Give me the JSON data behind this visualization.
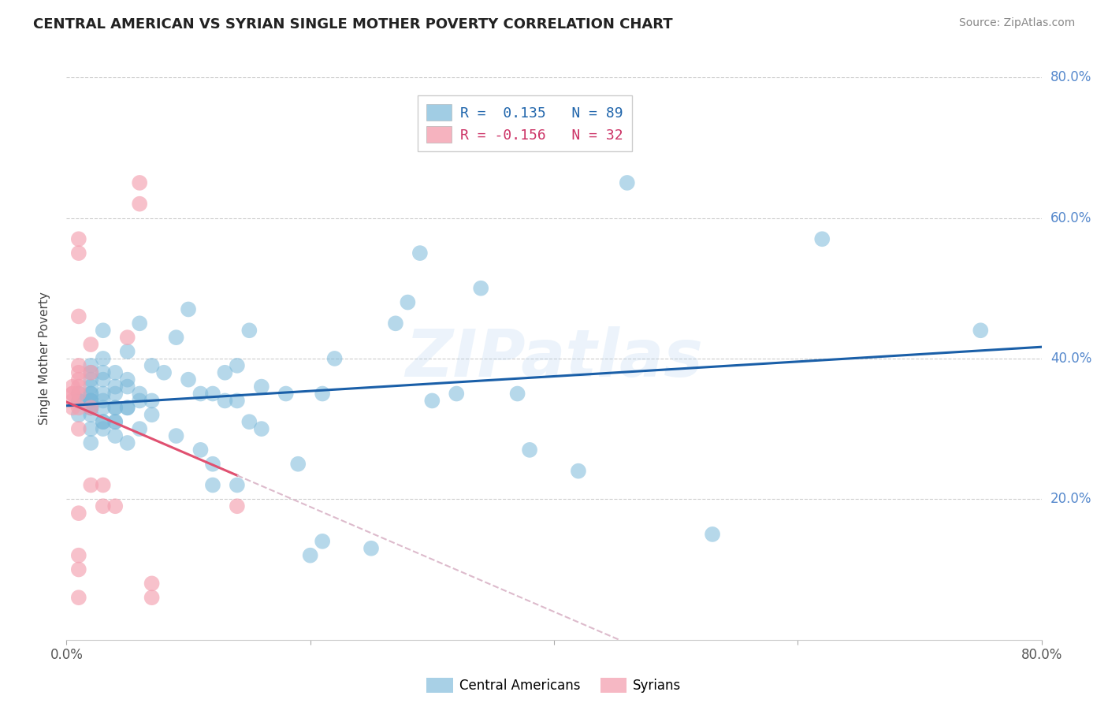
{
  "title": "CENTRAL AMERICAN VS SYRIAN SINGLE MOTHER POVERTY CORRELATION CHART",
  "source": "Source: ZipAtlas.com",
  "ylabel": "Single Mother Poverty",
  "xlim": [
    0.0,
    0.8
  ],
  "ylim": [
    0.0,
    0.8
  ],
  "xtick_labels": [
    "0.0%",
    "",
    "",
    "",
    "80.0%"
  ],
  "xtick_positions": [
    0.0,
    0.2,
    0.4,
    0.6,
    0.8
  ],
  "ytick_labels_right": [
    "80.0%",
    "60.0%",
    "40.0%",
    "20.0%"
  ],
  "ytick_positions_right": [
    0.8,
    0.6,
    0.4,
    0.2
  ],
  "ca_color": "#7ab8d9",
  "sy_color": "#f4a0b0",
  "ca_line_color": "#1a5fa8",
  "sy_line_color": "#e05070",
  "sy_line_dashed_color": "#ddbbcc",
  "watermark": "ZIPatlas",
  "legend_r_ca": "R =  0.135",
  "legend_n_ca": "N = 89",
  "legend_r_sy": "R = -0.156",
  "legend_n_sy": "N = 32",
  "ca_x": [
    0.01,
    0.01,
    0.01,
    0.01,
    0.02,
    0.02,
    0.02,
    0.02,
    0.02,
    0.02,
    0.02,
    0.02,
    0.02,
    0.02,
    0.02,
    0.02,
    0.02,
    0.02,
    0.02,
    0.03,
    0.03,
    0.03,
    0.03,
    0.03,
    0.03,
    0.03,
    0.03,
    0.03,
    0.03,
    0.04,
    0.04,
    0.04,
    0.04,
    0.04,
    0.04,
    0.04,
    0.04,
    0.05,
    0.05,
    0.05,
    0.05,
    0.05,
    0.05,
    0.06,
    0.06,
    0.06,
    0.06,
    0.07,
    0.07,
    0.07,
    0.08,
    0.09,
    0.09,
    0.1,
    0.1,
    0.11,
    0.11,
    0.12,
    0.12,
    0.12,
    0.13,
    0.13,
    0.14,
    0.14,
    0.14,
    0.15,
    0.15,
    0.16,
    0.16,
    0.18,
    0.19,
    0.2,
    0.21,
    0.21,
    0.22,
    0.25,
    0.27,
    0.28,
    0.29,
    0.3,
    0.32,
    0.34,
    0.37,
    0.38,
    0.42,
    0.46,
    0.53,
    0.62,
    0.75
  ],
  "ca_y": [
    0.32,
    0.34,
    0.34,
    0.35,
    0.28,
    0.3,
    0.32,
    0.33,
    0.33,
    0.33,
    0.34,
    0.34,
    0.34,
    0.35,
    0.35,
    0.36,
    0.37,
    0.38,
    0.39,
    0.3,
    0.31,
    0.31,
    0.33,
    0.34,
    0.35,
    0.37,
    0.38,
    0.4,
    0.44,
    0.29,
    0.31,
    0.31,
    0.33,
    0.33,
    0.35,
    0.36,
    0.38,
    0.28,
    0.33,
    0.33,
    0.36,
    0.37,
    0.41,
    0.3,
    0.34,
    0.35,
    0.45,
    0.32,
    0.34,
    0.39,
    0.38,
    0.29,
    0.43,
    0.37,
    0.47,
    0.27,
    0.35,
    0.22,
    0.25,
    0.35,
    0.34,
    0.38,
    0.22,
    0.34,
    0.39,
    0.31,
    0.44,
    0.3,
    0.36,
    0.35,
    0.25,
    0.12,
    0.14,
    0.35,
    0.4,
    0.13,
    0.45,
    0.48,
    0.55,
    0.34,
    0.35,
    0.5,
    0.35,
    0.27,
    0.24,
    0.65,
    0.15,
    0.57,
    0.44
  ],
  "sy_x": [
    0.005,
    0.005,
    0.005,
    0.005,
    0.005,
    0.01,
    0.01,
    0.01,
    0.01,
    0.01,
    0.01,
    0.01,
    0.01,
    0.01,
    0.01,
    0.01,
    0.01,
    0.01,
    0.01,
    0.02,
    0.02,
    0.02,
    0.02,
    0.03,
    0.03,
    0.04,
    0.05,
    0.06,
    0.06,
    0.07,
    0.07,
    0.14
  ],
  "sy_y": [
    0.33,
    0.34,
    0.35,
    0.35,
    0.36,
    0.3,
    0.33,
    0.35,
    0.36,
    0.37,
    0.38,
    0.39,
    0.46,
    0.55,
    0.57,
    0.06,
    0.1,
    0.12,
    0.18,
    0.22,
    0.33,
    0.38,
    0.42,
    0.19,
    0.22,
    0.19,
    0.43,
    0.62,
    0.65,
    0.06,
    0.08,
    0.19
  ]
}
